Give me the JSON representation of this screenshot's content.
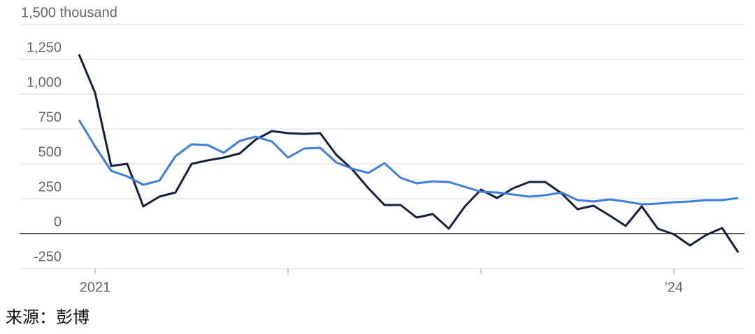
{
  "chart_data": {
    "type": "line",
    "categories": [
      null,
      "2021",
      null,
      null,
      null,
      null,
      null,
      null,
      null,
      null,
      null,
      null,
      null,
      null,
      null,
      null,
      null,
      null,
      null,
      null,
      null,
      null,
      null,
      null,
      null,
      null,
      null,
      null,
      null,
      null,
      null,
      null,
      null,
      null,
      null,
      null,
      null,
      "'24",
      null,
      null,
      null,
      null
    ],
    "series": [
      {
        "color": "#14213d",
        "values": [
          1285,
          1010,
          485,
          500,
          195,
          265,
          295,
          500,
          525,
          545,
          575,
          675,
          735,
          720,
          715,
          720,
          565,
          460,
          325,
          205,
          205,
          115,
          140,
          35,
          195,
          315,
          255,
          325,
          370,
          370,
          290,
          175,
          200,
          130,
          55,
          195,
          35,
          -5,
          -85,
          -10,
          40,
          -135
        ]
      },
      {
        "color": "#3d7ee0",
        "values": [
          815,
          625,
          450,
          410,
          350,
          380,
          555,
          640,
          635,
          580,
          665,
          695,
          660,
          545,
          610,
          615,
          510,
          465,
          435,
          505,
          400,
          360,
          375,
          370,
          335,
          300,
          295,
          280,
          265,
          275,
          295,
          240,
          230,
          245,
          230,
          210,
          215,
          225,
          230,
          240,
          240,
          255
        ]
      }
    ],
    "ylim": [
      -250,
      1500
    ],
    "yticks": [
      -250,
      0,
      250,
      500,
      750,
      {
        "value": 1000,
        "label": "1,000"
      },
      {
        "value": 1250,
        "label": "1,250"
      },
      {
        "value": 1500,
        "label": "1,500 thousand"
      }
    ],
    "grid": true,
    "source": "来源：彭博"
  }
}
